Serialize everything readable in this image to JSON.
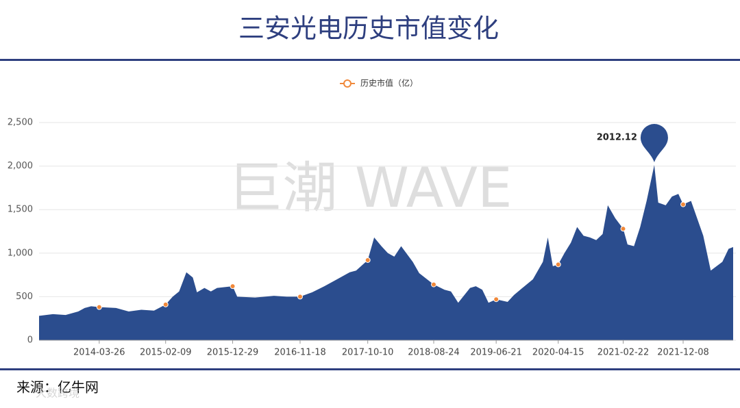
{
  "chart_data": {
    "type": "area",
    "title": "三安光电历史市值变化",
    "watermark": "巨潮 WAVE",
    "source": "来源：亿牛网",
    "footer_watermark": "大数跨境",
    "series": [
      {
        "name": "历史市值（亿）",
        "color": "#2b4d8e",
        "marker_color": "#f0883a",
        "x": [
          "2013-06-09",
          "2013-08-15",
          "2013-10-15",
          "2013-12-15",
          "2014-01-15",
          "2014-02-15",
          "2014-03-26",
          "2014-06-15",
          "2014-08-15",
          "2014-10-15",
          "2014-12-15",
          "2015-02-09",
          "2015-03-15",
          "2015-04-15",
          "2015-05-20",
          "2015-06-20",
          "2015-07-10",
          "2015-08-15",
          "2015-09-15",
          "2015-10-15",
          "2015-12-29",
          "2016-01-20",
          "2016-04-15",
          "2016-07-15",
          "2016-09-15",
          "2016-11-18",
          "2017-01-15",
          "2017-03-15",
          "2017-05-15",
          "2017-07-15",
          "2017-08-15",
          "2017-10-10",
          "2017-11-10",
          "2017-12-15",
          "2018-01-15",
          "2018-02-15",
          "2018-03-20",
          "2018-05-15",
          "2018-06-15",
          "2018-08-24",
          "2018-10-15",
          "2018-11-15",
          "2018-12-20",
          "2019-02-15",
          "2019-03-15",
          "2019-04-15",
          "2019-05-15",
          "2019-06-21",
          "2019-08-15",
          "2019-09-15",
          "2019-10-15",
          "2019-12-15",
          "2020-02-01",
          "2020-02-25",
          "2020-03-20",
          "2020-04-15",
          "2020-05-15",
          "2020-06-15",
          "2020-07-15",
          "2020-08-15",
          "2020-09-15",
          "2020-10-15",
          "2020-11-15",
          "2020-12-10",
          "2021-01-15",
          "2021-02-22",
          "2021-03-15",
          "2021-04-15",
          "2021-05-15",
          "2021-06-15",
          "2021-07-22",
          "2021-08-10",
          "2021-09-15",
          "2021-10-15",
          "2021-11-15",
          "2021-12-08",
          "2022-01-15",
          "2022-03-15",
          "2022-04-20",
          "2022-06-15",
          "2022-07-15",
          "2022-08-06"
        ],
        "values": [
          280,
          300,
          290,
          330,
          370,
          390,
          380,
          370,
          330,
          350,
          340,
          410,
          500,
          560,
          780,
          720,
          550,
          600,
          560,
          600,
          620,
          500,
          490,
          510,
          500,
          500,
          550,
          620,
          700,
          780,
          800,
          920,
          1180,
          1080,
          1000,
          960,
          1080,
          900,
          770,
          640,
          580,
          560,
          430,
          600,
          620,
          580,
          430,
          470,
          440,
          520,
          580,
          700,
          900,
          1180,
          850,
          870,
          1000,
          1120,
          1300,
          1200,
          1180,
          1150,
          1220,
          1550,
          1400,
          1280,
          1100,
          1080,
          1300,
          1600,
          2012.12,
          1580,
          1550,
          1650,
          1680,
          1560,
          1600,
          1200,
          800,
          900,
          1050,
          1070
        ]
      }
    ],
    "xlim": [
      "2013-06-09",
      "2022-08-06"
    ],
    "xticks": [
      "2014-03-26",
      "2015-02-09",
      "2015-12-29",
      "2016-11-18",
      "2017-10-10",
      "2018-08-24",
      "2019-06-21",
      "2020-04-15",
      "2021-02-22",
      "2021-12-08"
    ],
    "ylim": [
      0,
      2500
    ],
    "yticks": [
      0,
      500,
      {
        "value": 1000,
        "label": "1,000"
      },
      {
        "value": 1500,
        "label": "1,500"
      },
      {
        "value": 2000,
        "label": "2,000"
      },
      {
        "value": 2500,
        "label": "2,500"
      }
    ],
    "grid": true,
    "annotation": {
      "x": "2021-07-22",
      "value": 2012.12
    }
  }
}
